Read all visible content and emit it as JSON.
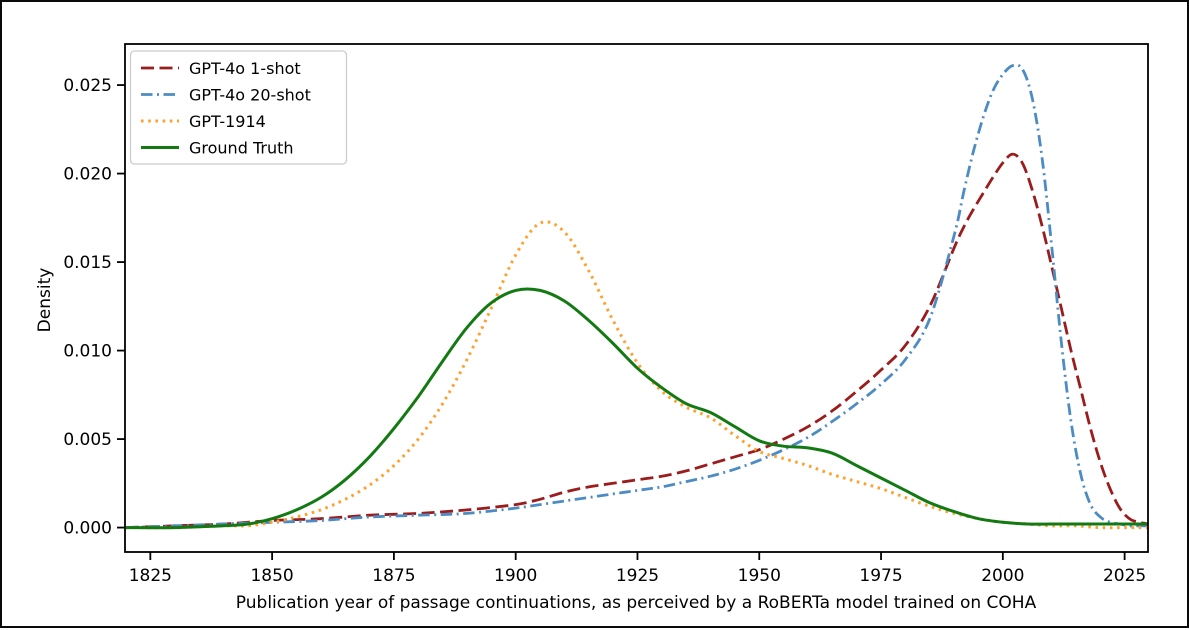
{
  "figure": {
    "background": "#ffffff",
    "outer_border_color": "#0a0a0a",
    "spine_color": "#000000",
    "text_color": "#000000"
  },
  "chart_data": {
    "type": "line",
    "title": "",
    "xlabel": "Publication year of passage continuations, as perceived by a RoBERTa model trained on COHA",
    "ylabel": "Density",
    "grid": false,
    "legend_position": "upper left",
    "axes": {
      "xlim": [
        1819.8,
        2029.8
      ],
      "ylim": [
        -0.00138,
        0.02732
      ],
      "xticks": [
        1825,
        1850,
        1875,
        1900,
        1925,
        1950,
        1975,
        2000,
        2025
      ],
      "yticks": [
        {
          "value": 0.0,
          "label": "0.000"
        },
        {
          "value": 0.005,
          "label": "0.005"
        },
        {
          "value": 0.01,
          "label": "0.010"
        },
        {
          "value": 0.015,
          "label": "0.015"
        },
        {
          "value": 0.02,
          "label": "0.020"
        },
        {
          "value": 0.025,
          "label": "0.025"
        }
      ]
    },
    "series": [
      {
        "name": "GPT-4o 1-shot",
        "color": "#9B1C1C",
        "linestyle": "dashed",
        "linewidth": 2.8,
        "peak": {
          "x": 2002,
          "y": 0.0211
        },
        "x": [
          1820,
          1830,
          1840,
          1850,
          1860,
          1870,
          1880,
          1890,
          1900,
          1905,
          1910,
          1915,
          1920,
          1925,
          1930,
          1935,
          1940,
          1945,
          1950,
          1955,
          1960,
          1965,
          1970,
          1975,
          1980,
          1985,
          1990,
          1992,
          1994,
          1996,
          1998,
          2000,
          2002,
          2004,
          2006,
          2008,
          2010,
          2012,
          2014,
          2016,
          2018,
          2020,
          2022,
          2024,
          2026,
          2028,
          2030
        ],
        "y": [
          0.0,
          0.0001,
          0.0002,
          0.0004,
          0.0005,
          0.0007,
          0.0008,
          0.001,
          0.0013,
          0.0016,
          0.002,
          0.0023,
          0.0025,
          0.0027,
          0.0029,
          0.0032,
          0.0036,
          0.004,
          0.0044,
          0.005,
          0.0057,
          0.0066,
          0.0077,
          0.0089,
          0.0103,
          0.0125,
          0.0158,
          0.017,
          0.018,
          0.0189,
          0.0198,
          0.0206,
          0.0211,
          0.0206,
          0.0191,
          0.0171,
          0.0148,
          0.0124,
          0.01,
          0.0078,
          0.0056,
          0.0037,
          0.0022,
          0.0011,
          0.0005,
          0.0003,
          0.0002
        ]
      },
      {
        "name": "GPT-4o 20-shot",
        "color": "#4D8CC3",
        "linestyle": "dashdot",
        "linewidth": 2.8,
        "peak": {
          "x": 2002,
          "y": 0.0261
        },
        "x": [
          1820,
          1830,
          1840,
          1850,
          1860,
          1870,
          1880,
          1890,
          1900,
          1905,
          1910,
          1915,
          1920,
          1925,
          1930,
          1935,
          1940,
          1945,
          1950,
          1955,
          1960,
          1965,
          1970,
          1975,
          1980,
          1985,
          1990,
          1992,
          1994,
          1996,
          1998,
          2000,
          2002,
          2004,
          2006,
          2008,
          2010,
          2012,
          2014,
          2016,
          2018,
          2020,
          2022,
          2024,
          2026,
          2028,
          2030
        ],
        "y": [
          0.0,
          0.0001,
          0.0002,
          0.0003,
          0.0004,
          0.0006,
          0.0007,
          0.0008,
          0.0011,
          0.0013,
          0.0015,
          0.0017,
          0.0019,
          0.0021,
          0.0023,
          0.0026,
          0.0029,
          0.0033,
          0.0038,
          0.0044,
          0.0051,
          0.006,
          0.007,
          0.0081,
          0.0095,
          0.0118,
          0.0165,
          0.019,
          0.0213,
          0.0232,
          0.0247,
          0.0256,
          0.0261,
          0.0259,
          0.0243,
          0.021,
          0.016,
          0.0105,
          0.006,
          0.003,
          0.0013,
          0.0006,
          0.0003,
          0.0002,
          0.0001,
          0.0001,
          0.0001
        ]
      },
      {
        "name": "GPT-1914",
        "color": "#FFA12E",
        "linestyle": "dotted",
        "linewidth": 3,
        "peak": {
          "x": 1905,
          "y": 0.0172
        },
        "x": [
          1820,
          1830,
          1840,
          1845,
          1850,
          1855,
          1860,
          1865,
          1870,
          1875,
          1880,
          1885,
          1890,
          1895,
          1900,
          1905,
          1910,
          1915,
          1920,
          1925,
          1930,
          1935,
          1940,
          1945,
          1950,
          1955,
          1960,
          1965,
          1970,
          1975,
          1980,
          1985,
          1990,
          1995,
          2000,
          2005,
          2010,
          2015,
          2020,
          2025,
          2030
        ],
        "y": [
          0.0,
          0.0,
          0.0001,
          0.0001,
          0.0003,
          0.0006,
          0.001,
          0.0016,
          0.0024,
          0.0035,
          0.005,
          0.007,
          0.0095,
          0.0124,
          0.0154,
          0.0172,
          0.0167,
          0.0145,
          0.0117,
          0.0093,
          0.0077,
          0.0068,
          0.0062,
          0.0052,
          0.0043,
          0.0039,
          0.0035,
          0.003,
          0.0026,
          0.0022,
          0.0017,
          0.0012,
          0.0008,
          0.0005,
          0.0003,
          0.0002,
          0.0001,
          0.0001,
          0.0,
          0.0,
          0.0
        ]
      },
      {
        "name": "Ground Truth",
        "color": "#137A13",
        "linestyle": "solid",
        "linewidth": 3,
        "peak": {
          "x": 1902,
          "y": 0.0134
        },
        "x": [
          1820,
          1830,
          1840,
          1845,
          1850,
          1855,
          1860,
          1865,
          1870,
          1875,
          1880,
          1885,
          1890,
          1895,
          1900,
          1905,
          1910,
          1915,
          1920,
          1925,
          1930,
          1935,
          1940,
          1945,
          1950,
          1955,
          1960,
          1965,
          1970,
          1975,
          1980,
          1985,
          1990,
          1995,
          2000,
          2005,
          2010,
          2015,
          2020,
          2025,
          2030
        ],
        "y": [
          0.0,
          0.0,
          0.0001,
          0.0002,
          0.0005,
          0.001,
          0.0017,
          0.0027,
          0.004,
          0.0056,
          0.0074,
          0.0094,
          0.0113,
          0.0127,
          0.0134,
          0.0134,
          0.0128,
          0.0117,
          0.0104,
          0.009,
          0.0079,
          0.007,
          0.0065,
          0.0057,
          0.0049,
          0.0046,
          0.0045,
          0.0042,
          0.0035,
          0.0028,
          0.0021,
          0.0014,
          0.0009,
          0.0005,
          0.0003,
          0.0002,
          0.0002,
          0.0002,
          0.0002,
          0.0002,
          0.0002
        ]
      }
    ]
  }
}
